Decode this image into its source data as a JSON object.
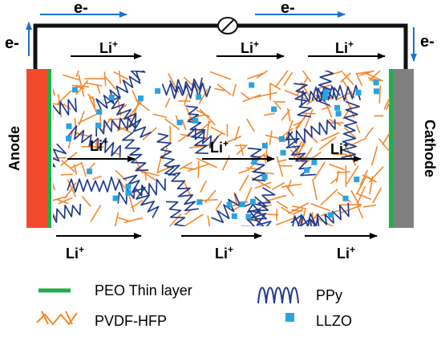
{
  "circuit": {
    "electron_labels": [
      "e-",
      "e-",
      "e-",
      "e-"
    ]
  },
  "electrodes": {
    "anode": "Anode",
    "cathode": "Cathode"
  },
  "ion_label": {
    "base": "Li",
    "charge": "+"
  },
  "legend": {
    "peo": "PEO Thin layer",
    "pvdf": "PVDF-HFP",
    "ppy": "PPy",
    "llzo": "LLZO"
  },
  "colors": {
    "anode": "#f04a2a",
    "cathode": "#808080",
    "peo": "#1fae49",
    "pvdf": "#f5872c",
    "ppy": "#1f3a8a",
    "llzo": "#2ba3de",
    "electron_arrow": "#1f6fd1",
    "wire": "#111111"
  }
}
